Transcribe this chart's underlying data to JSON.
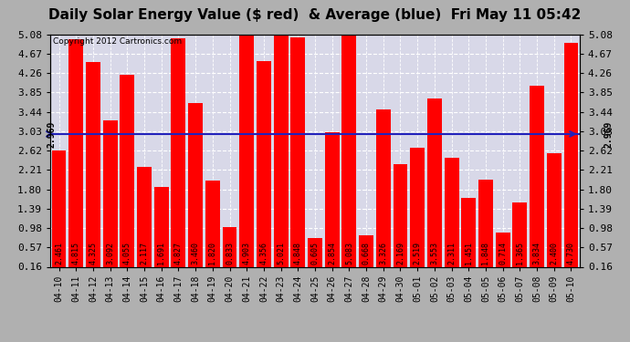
{
  "title": "Daily Solar Energy Value ($ red)  & Average (blue)  Fri May 11 05:42",
  "copyright": "Copyright 2012 Cartronics.com",
  "categories": [
    "04-10",
    "04-11",
    "04-12",
    "04-13",
    "04-14",
    "04-15",
    "04-16",
    "04-17",
    "04-18",
    "04-19",
    "04-20",
    "04-21",
    "04-22",
    "04-23",
    "04-24",
    "04-25",
    "04-26",
    "04-27",
    "04-28",
    "04-29",
    "04-30",
    "05-01",
    "05-02",
    "05-03",
    "05-04",
    "05-05",
    "05-06",
    "05-07",
    "05-08",
    "05-09",
    "05-10"
  ],
  "values": [
    2.461,
    4.815,
    4.325,
    3.092,
    4.055,
    2.117,
    1.691,
    4.827,
    3.46,
    1.82,
    0.833,
    4.903,
    4.356,
    5.021,
    4.848,
    0.605,
    2.854,
    5.083,
    0.668,
    3.326,
    2.169,
    2.519,
    3.553,
    2.311,
    1.451,
    1.848,
    0.714,
    1.365,
    3.834,
    2.4,
    4.73
  ],
  "average": 2.969,
  "bar_color": "#ff0000",
  "avg_line_color": "#2222bb",
  "background_color": "#d8d8e8",
  "grid_color": "#ffffff",
  "ylim_min": 0.16,
  "ylim_max": 5.08,
  "yticks": [
    0.16,
    0.57,
    0.98,
    1.39,
    1.8,
    2.21,
    2.62,
    3.03,
    3.44,
    3.85,
    4.26,
    4.67,
    5.08
  ],
  "title_fontsize": 11,
  "avg_label": "2.969",
  "tick_fontsize": 8,
  "xlabel_fontsize": 7,
  "val_fontsize": 6,
  "copyright_fontsize": 6.5
}
